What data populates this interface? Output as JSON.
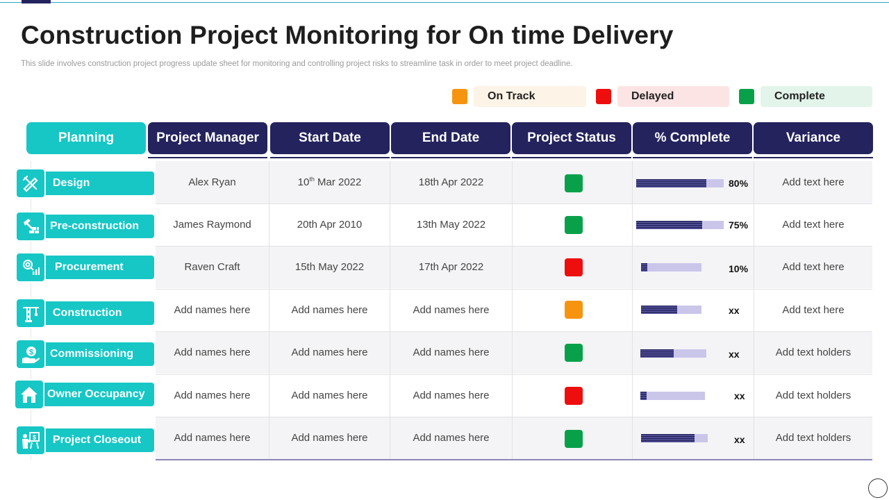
{
  "title": "Construction Project Monitoring for On time Delivery",
  "subtitle": "This slide involves construction project progress update sheet for monitoring and controlling project risks to streamline task in order to meet project deadline.",
  "legend": [
    {
      "label": "On Track",
      "color": "#f7940f",
      "bg": "#fdf3e6"
    },
    {
      "label": "Delayed",
      "color": "#ee0e0e",
      "bg": "#fde4e4"
    },
    {
      "label": "Complete",
      "color": "#08a14a",
      "bg": "#e3f5ea"
    }
  ],
  "headers": [
    "Planning",
    "Project Manager",
    "Start Date",
    "End Date",
    "Project Status",
    "% Complete",
    "Variance"
  ],
  "rows": [
    {
      "phase": "Design",
      "icon": "design-tools-icon",
      "manager": "Alex Ryan",
      "start_day": "10",
      "start_sup": "th",
      "start_rest": " Mar 2022",
      "end": "18th Apr 2022",
      "status": "complete",
      "status_color": "#08a14a",
      "progress": 0.8,
      "pct_label": "80%",
      "variance": "Add text here"
    },
    {
      "phase": "Pre-construction",
      "icon": "hammer-bricks-icon",
      "manager": "James Raymond",
      "start": "20th Apr 2010",
      "end": "13th May 2022",
      "status": "complete",
      "status_color": "#08a14a",
      "progress": 0.75,
      "pct_label": "75%",
      "variance": "Add text here"
    },
    {
      "phase": "Procurement",
      "icon": "procurement-icon",
      "manager": "Raven Craft",
      "start": "15th May 2022",
      "end": "17th Apr 2022",
      "status": "delayed",
      "status_color": "#ee0e0e",
      "progress": 0.1,
      "pct_label": "10%",
      "variance": "Add text here"
    },
    {
      "phase": "Construction",
      "icon": "crane-icon",
      "manager": "Add names here",
      "start": "Add names here",
      "end": "Add names here",
      "status": "on-track",
      "status_color": "#f7940f",
      "progress": 0.6,
      "pct_label": "xx",
      "variance": "Add text here"
    },
    {
      "phase": "Commissioning",
      "icon": "dollar-hand-icon",
      "manager": "Add names here",
      "start": "Add names here",
      "end": "Add names here",
      "status": "complete",
      "status_color": "#08a14a",
      "progress": 0.5,
      "pct_label": "xx",
      "variance": "Add text holders"
    },
    {
      "phase": "Owner Occupancy",
      "icon": "house-icon",
      "manager": "Add names here",
      "start": "Add names here",
      "end": "Add names here",
      "status": "delayed",
      "status_color": "#ee0e0e",
      "progress": 0.1,
      "pct_label": "xx",
      "variance": "Add text holders"
    },
    {
      "phase": "Project Closeout",
      "icon": "presentation-icon",
      "manager": "Add names here",
      "start": "Add names here",
      "end": "Add names here",
      "status": "complete",
      "status_color": "#08a14a",
      "progress": 0.8,
      "pct_label": "xx",
      "variance": "Add text holders"
    }
  ]
}
